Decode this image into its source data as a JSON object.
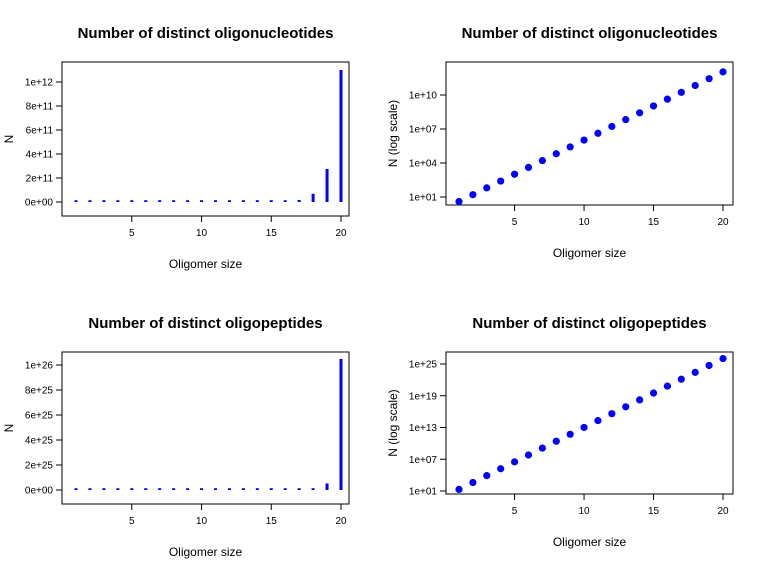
{
  "chart_data": [
    {
      "type": "bar",
      "title": "Number of distinct oligonucleotides",
      "xlabel": "Oligomer size",
      "ylabel": "N",
      "scale": "linear",
      "color": "#0000ff",
      "x": [
        1,
        2,
        3,
        4,
        5,
        6,
        7,
        8,
        9,
        10,
        11,
        12,
        13,
        14,
        15,
        16,
        17,
        18,
        19,
        20
      ],
      "values": [
        4,
        16,
        64,
        256,
        1024,
        4096,
        16384,
        65536,
        262144,
        1048576,
        4194304,
        16777216,
        67108864,
        268435456,
        1073741824,
        4294967296,
        17179869184,
        68719476736,
        274877906944,
        1099511627776
      ],
      "xlim": [
        1,
        20
      ],
      "ylim": [
        0,
        1100000000000
      ],
      "xticks": [
        5,
        10,
        15,
        20
      ],
      "xtick_labels": [
        "5",
        "10",
        "15",
        "20"
      ],
      "yticks": [
        0,
        200000000000,
        400000000000,
        600000000000,
        800000000000,
        1000000000000
      ],
      "ytick_labels": [
        "0e+00",
        "2e+11",
        "4e+11",
        "6e+11",
        "8e+11",
        "1e+12"
      ]
    },
    {
      "type": "scatter",
      "title": "Number of distinct oligonucleotides",
      "xlabel": "Oligomer size",
      "ylabel": "N (log scale)",
      "scale": "log",
      "color": "#0000ff",
      "x": [
        1,
        2,
        3,
        4,
        5,
        6,
        7,
        8,
        9,
        10,
        11,
        12,
        13,
        14,
        15,
        16,
        17,
        18,
        19,
        20
      ],
      "log10_values": [
        0.602,
        1.204,
        1.806,
        2.408,
        3.01,
        3.612,
        4.214,
        4.816,
        5.418,
        6.021,
        6.623,
        7.225,
        7.827,
        8.429,
        9.031,
        9.633,
        10.235,
        10.837,
        11.439,
        12.041
      ],
      "xlim": [
        1,
        20
      ],
      "log10_ylim": [
        0.602,
        12.041
      ],
      "xticks": [
        5,
        10,
        15,
        20
      ],
      "xtick_labels": [
        "5",
        "10",
        "15",
        "20"
      ],
      "log10_yticks": [
        1,
        4,
        7,
        10
      ],
      "ytick_labels": [
        "1e+01",
        "1e+04",
        "1e+07",
        "1e+10"
      ]
    },
    {
      "type": "bar",
      "title": "Number of distinct oligopeptides",
      "xlabel": "Oligomer size",
      "ylabel": "N",
      "scale": "linear",
      "color": "#0000ff",
      "x": [
        1,
        2,
        3,
        4,
        5,
        6,
        7,
        8,
        9,
        10,
        11,
        12,
        13,
        14,
        15,
        16,
        17,
        18,
        19,
        20
      ],
      "values": [
        20,
        400,
        8000,
        160000,
        3200000,
        64000000,
        1280000000,
        25600000000,
        512000000000,
        10240000000000,
        204800000000000.0,
        4096000000000000.0,
        8.192e+16,
        1.6384e+18,
        3.2768e+19,
        6.5536e+20,
        1.31072e+22,
        2.62144e+23,
        5.24288e+24,
        1.048576e+26
      ],
      "xlim": [
        1,
        20
      ],
      "ylim": [
        0,
        1.048576e+26
      ],
      "xticks": [
        5,
        10,
        15,
        20
      ],
      "xtick_labels": [
        "5",
        "10",
        "15",
        "20"
      ],
      "yticks": [
        0,
        2e+25,
        4e+25,
        6e+25,
        8e+25,
        1e+26
      ],
      "ytick_labels": [
        "0e+00",
        "2e+25",
        "4e+25",
        "6e+25",
        "8e+25",
        "1e+26"
      ]
    },
    {
      "type": "scatter",
      "title": "Number of distinct oligopeptides",
      "xlabel": "Oligomer size",
      "ylabel": "N (log scale)",
      "scale": "log",
      "color": "#0000ff",
      "x": [
        1,
        2,
        3,
        4,
        5,
        6,
        7,
        8,
        9,
        10,
        11,
        12,
        13,
        14,
        15,
        16,
        17,
        18,
        19,
        20
      ],
      "log10_values": [
        1.301,
        2.602,
        3.903,
        5.204,
        6.505,
        7.806,
        9.107,
        10.408,
        11.709,
        13.01,
        14.311,
        15.612,
        16.913,
        18.214,
        19.515,
        20.816,
        22.118,
        23.419,
        24.72,
        26.021
      ],
      "xlim": [
        1,
        20
      ],
      "log10_ylim": [
        1.301,
        26.021
      ],
      "xticks": [
        5,
        10,
        15,
        20
      ],
      "xtick_labels": [
        "5",
        "10",
        "15",
        "20"
      ],
      "log10_yticks": [
        1,
        7,
        13,
        19,
        25
      ],
      "ytick_labels": [
        "1e+01",
        "1e+07",
        "1e+13",
        "1e+19",
        "1e+25"
      ]
    }
  ]
}
